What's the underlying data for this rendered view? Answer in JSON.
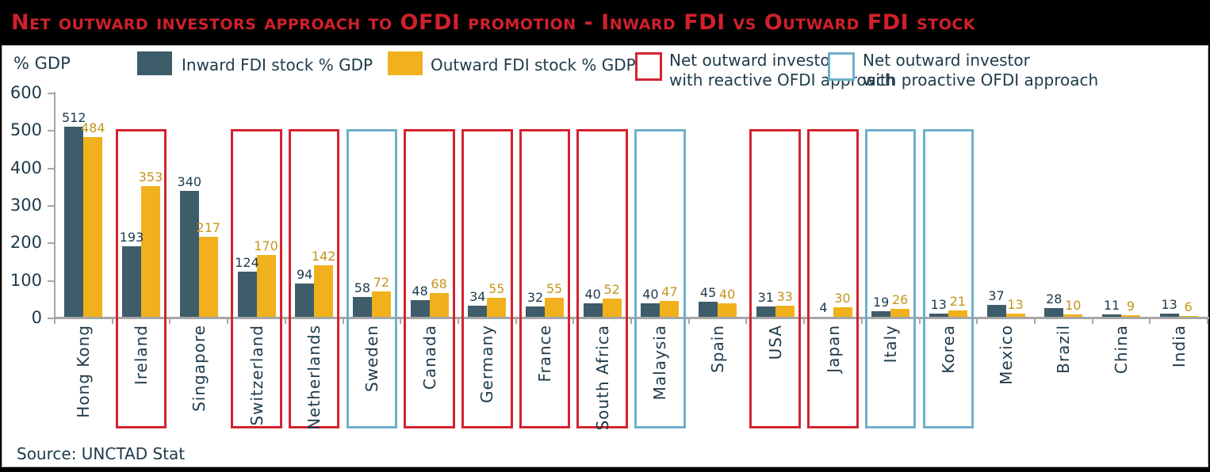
{
  "title": "Net outward investors approach to OFDI promotion - Inward FDI vs Outward FDI stock",
  "source": "Source: UNCTAD Stat",
  "legend": {
    "inward_label": "Inward FDI stock % GDP",
    "outward_label": "Outward FDI stock % GDP",
    "reactive_label": "Net outward investor\nwith reactive OFDI approach",
    "proactive_label": "Net outward investor\nwith proactive OFDI approach"
  },
  "colors": {
    "inward_bar": "#3e5c6a",
    "outward_bar": "#f1b11c",
    "reactive_box": "#d32330",
    "proactive_box": "#6fb0cc",
    "title_text": "#d0202c",
    "dark_text": "#1d3a4a",
    "inward_value_text": "#1e3a4c",
    "outward_value_text": "#c5951a",
    "axis_line": "#a6a6a6"
  },
  "chart_data": {
    "type": "bar",
    "title": "Net outward investors approach to OFDI promotion - Inward FDI vs Outward FDI stock",
    "ylabel": "% GDP",
    "ylim": [
      0,
      600
    ],
    "yticks": [
      0,
      100,
      200,
      300,
      400,
      500,
      600
    ],
    "grid": false,
    "legend_position": "top",
    "categories": [
      "Hong Kong",
      "Ireland",
      "Singapore",
      "Switzerland",
      "Netherlands",
      "Sweden",
      "Canada",
      "Germany",
      "France",
      "South Africa",
      "Malaysia",
      "Spain",
      "USA",
      "Japan",
      "Italy",
      "Korea",
      "Mexico",
      "Brazil",
      "China",
      "India"
    ],
    "series": [
      {
        "name": "Inward FDI stock % GDP",
        "values": [
          512,
          193,
          340,
          124,
          94,
          58,
          48,
          34,
          32,
          40,
          40,
          45,
          31,
          4,
          19,
          13,
          37,
          28,
          11,
          13
        ]
      },
      {
        "name": "Outward FDI stock % GDP",
        "values": [
          484,
          353,
          217,
          170,
          142,
          72,
          68,
          55,
          55,
          52,
          47,
          40,
          33,
          30,
          26,
          21,
          13,
          10,
          9,
          6
        ]
      }
    ],
    "approach_boxes": [
      "none",
      "reactive",
      "none",
      "reactive",
      "reactive",
      "proactive",
      "reactive",
      "reactive",
      "reactive",
      "reactive",
      "proactive",
      "none",
      "reactive",
      "reactive",
      "proactive",
      "proactive",
      "none",
      "none",
      "none",
      "none"
    ],
    "box_legend": {
      "reactive": "Net outward investor with reactive OFDI approach",
      "proactive": "Net outward investor with proactive OFDI approach"
    }
  }
}
